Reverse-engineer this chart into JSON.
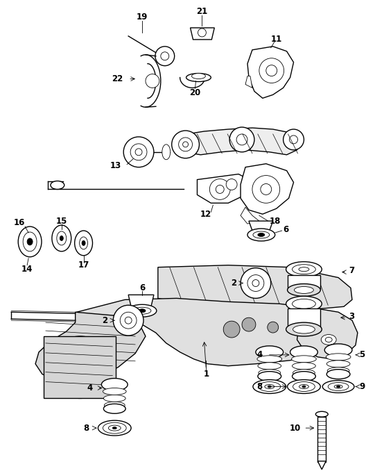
{
  "bg_color": "#ffffff",
  "line_color": "#000000",
  "fig_width": 5.28,
  "fig_height": 6.78,
  "dpi": 100,
  "lw_main": 1.0,
  "lw_thin": 0.6,
  "label_fontsize": 8.5
}
